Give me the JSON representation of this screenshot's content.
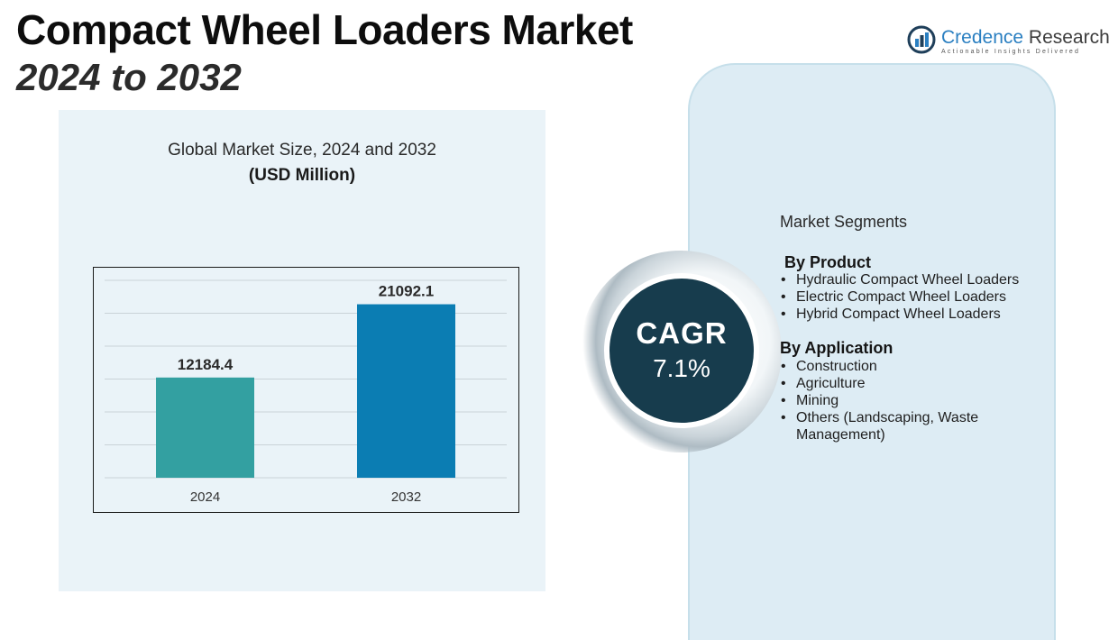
{
  "title": {
    "main": "Compact Wheel Loaders Market",
    "sub": "2024 to 2032"
  },
  "logo": {
    "name_part1": "Credence",
    "name_part2": "Research",
    "tagline": "Actionable Insights Delivered",
    "icon": "bar-chart-circle-icon"
  },
  "chart_data": {
    "type": "bar",
    "title": "Global Market Size, 2024 and 2032",
    "subtitle": "(USD Million)",
    "categories": [
      "2024",
      "2032"
    ],
    "values": [
      12184.4,
      21092.1
    ],
    "value_labels": [
      "12184.4",
      "21092.1"
    ],
    "colors": [
      "#33a0a1",
      "#0b7db3"
    ],
    "ylim": [
      0,
      24000
    ],
    "grid": true,
    "xlabel": "",
    "ylabel": ""
  },
  "cagr": {
    "label": "CAGR",
    "value": "7.1%"
  },
  "segments": {
    "heading": "Market Segments",
    "groups": [
      {
        "title": "By Product",
        "items": [
          "Hydraulic Compact Wheel Loaders",
          "Electric Compact Wheel Loaders",
          "Hybrid Compact Wheel Loaders"
        ]
      },
      {
        "title": "By Application",
        "items": [
          "Construction",
          "Agriculture",
          "Mining",
          "Others (Landscaping, Waste Management)"
        ]
      }
    ]
  },
  "colors": {
    "panel_bg": "#eaf3f8",
    "segment_bg": "#ddecf4",
    "cagr_circle": "#173c4d",
    "brand_blue": "#2a7fc1"
  }
}
